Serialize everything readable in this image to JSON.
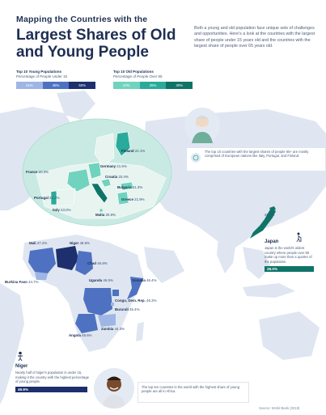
{
  "header": {
    "title_small": "Mapping the Countries with the",
    "title_big": "Largest Shares of Old and Young People",
    "intro": "Both a young and old population face unique sets of challenges and opportunities. Here's a look at the countries with the largest share of people under 15 years old and the countries with the largest share of people over 65 years old."
  },
  "legend_young": {
    "title": "Top 10 Young Populations",
    "subtitle": "Percentage of People Under 15",
    "bins": [
      "41%",
      "45%",
      "50%"
    ],
    "colors": [
      "#9db6e4",
      "#4e72c1",
      "#1e2f6e"
    ]
  },
  "legend_old": {
    "title": "Top 10 Old Populations",
    "subtitle": "Percentage of People Over 65",
    "bins": [
      "23%",
      "25%",
      "30%"
    ],
    "colors": [
      "#6fd3be",
      "#2aaa9a",
      "#0e7467"
    ]
  },
  "old_countries": [
    {
      "name": "Finland",
      "value": "22.1%"
    },
    {
      "name": "Germany",
      "value": "21.5%"
    },
    {
      "name": "France",
      "value": "20.3%"
    },
    {
      "name": "Croatia",
      "value": "20.4%"
    },
    {
      "name": "Bulgaria",
      "value": "21.3%"
    },
    {
      "name": "Portugal",
      "value": "22.3%"
    },
    {
      "name": "Greece",
      "value": "21.9%"
    },
    {
      "name": "Italy",
      "value": "23.0%"
    },
    {
      "name": "Malta",
      "value": "20.8%"
    }
  ],
  "europe_note": "The top 10 countries with the largest shares of people 65+ are mostly comprised of European nations like Italy, Portugal, and Finland.",
  "japan": {
    "name": "Japan",
    "value": "28.0%",
    "text": "Japan is the world's oldest country where people over 65 make up more than a quarter of the population.",
    "chip": "28.0%"
  },
  "young_countries": [
    {
      "name": "Mali",
      "value": "47.2%"
    },
    {
      "name": "Niger",
      "value": "49.8%"
    },
    {
      "name": "Chad",
      "value": "46.8%"
    },
    {
      "name": "Burkina Faso",
      "value": "44.7%"
    },
    {
      "name": "Uganda",
      "value": "46.5%"
    },
    {
      "name": "Somalia",
      "value": "46.4%"
    },
    {
      "name": "Congo, Dem. Rep.",
      "value": "46.3%"
    },
    {
      "name": "Burundi",
      "value": "45.4%"
    },
    {
      "name": "Zambia",
      "value": "44.3%"
    },
    {
      "name": "Angola",
      "value": "46.6%"
    }
  ],
  "niger": {
    "name": "Niger",
    "text": "Nearly half of Niger's population is under 15, making it the country with the highest percentage of young people.",
    "chip": "49.8%"
  },
  "africa_note": "The top ten countries in the world with the highest share of young people are all in Africa.",
  "source": "Source: World Bank (2019)"
}
